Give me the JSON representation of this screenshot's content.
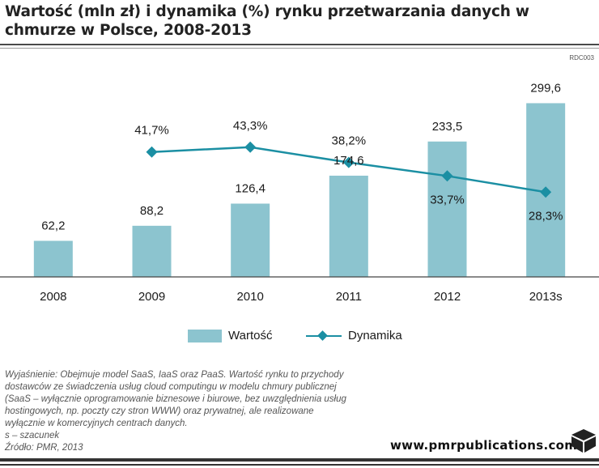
{
  "title": "Wartość (mln zł) i dynamika (%) rynku przetwarzania danych w chmurze w Polsce, 2008-2013",
  "code": "RDC003",
  "chart_data": {
    "type": "bar",
    "categories": [
      "2008",
      "2009",
      "2010",
      "2011",
      "2012",
      "2013s"
    ],
    "ylim": [
      0,
      310
    ],
    "series": [
      {
        "name": "Wartość",
        "type": "bar",
        "color": "#8cc4cf",
        "values": [
          62.2,
          88.2,
          126.4,
          174.6,
          233.5,
          299.6
        ],
        "labels": [
          "62,2",
          "88,2",
          "126,4",
          "174,6",
          "233,5",
          "299,6"
        ]
      },
      {
        "name": "Dynamika",
        "type": "line",
        "color": "#1b8fa3",
        "values": [
          null,
          41.7,
          43.3,
          38.2,
          33.7,
          28.3
        ],
        "labels": [
          null,
          "41,7%",
          "43,3%",
          "38,2%",
          "33,7%",
          "28,3%"
        ],
        "ylim": [
          0,
          60
        ]
      }
    ]
  },
  "legend": {
    "bar_label": "Wartość",
    "line_label": "Dynamika"
  },
  "notes": [
    "Wyjaśnienie: Obejmuje model SaaS, IaaS oraz PaaS. Wartość rynku to przychody",
    "dostawców ze świadczenia usług cloud computingu w modelu chmury publicznej",
    "(SaaS – wyłącznie oprogramowanie biznesowe i biurowe, bez uwzględnienia usług",
    "hostingowych, np. poczty czy stron WWW) oraz prywatnej, ale realizowane",
    "wyłącznie w komercyjnych centrach danych.",
    "s – szacunek",
    "Źródło: PMR, 2013"
  ],
  "website": "www.pmrpublications.com"
}
